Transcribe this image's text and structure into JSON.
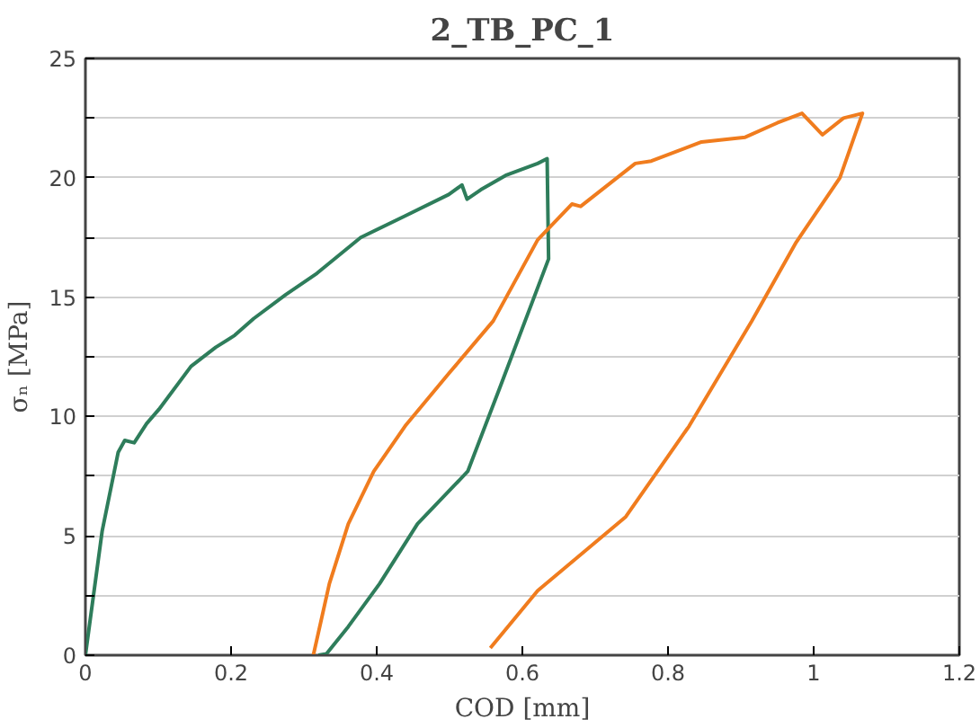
{
  "chart_data": {
    "type": "line",
    "title": "2_TB_PC_1",
    "xlabel": "COD [mm]",
    "ylabel": "σₙ [MPa]",
    "xlim": [
      0,
      1.2
    ],
    "ylim": [
      0,
      25
    ],
    "xticks": [
      0,
      0.2,
      0.4,
      0.6,
      0.8,
      1,
      1.2
    ],
    "yticks": [
      0,
      {
        "value": 2.5,
        "label": null
      },
      5,
      {
        "value": 7.5,
        "label": null
      },
      10,
      {
        "value": 12.5,
        "label": null
      },
      15,
      {
        "value": 17.5,
        "label": null
      },
      20,
      {
        "value": 22.5,
        "label": null
      },
      25
    ],
    "grid": "y",
    "marker": "none",
    "line_style": "solid",
    "series": [
      {
        "color": "#2e7d5b",
        "x": [
          0,
          0.023,
          0.045,
          0.054,
          0.067,
          0.084,
          0.101,
          0.145,
          0.179,
          0.205,
          0.231,
          0.275,
          0.318,
          0.378,
          0.439,
          0.499,
          0.517,
          0.524,
          0.543,
          0.577,
          0.621,
          0.634,
          0.636,
          0.569,
          0.525,
          0.456,
          0.404,
          0.361,
          0.331,
          0.32
        ],
        "values": [
          0,
          5.2,
          8.5,
          9.0,
          8.9,
          9.7,
          10.3,
          12.1,
          12.9,
          13.4,
          14.1,
          15.1,
          16.0,
          17.5,
          18.4,
          19.3,
          19.7,
          19.1,
          19.5,
          20.1,
          20.6,
          20.8,
          16.6,
          11.2,
          7.7,
          5.5,
          3.0,
          1.2,
          0.06,
          0
        ]
      },
      {
        "color": "#f07c1e",
        "x": [
          0.313,
          0.335,
          0.361,
          0.396,
          0.439,
          0.499,
          0.56,
          0.621,
          0.668,
          0.68,
          0.755,
          0.777,
          0.846,
          0.906,
          0.95,
          0.984,
          1.012,
          1.041,
          1.067,
          1.036,
          0.976,
          0.915,
          0.829,
          0.742,
          0.621,
          0.556
        ],
        "values": [
          0,
          3.0,
          5.5,
          7.7,
          9.6,
          11.8,
          14.0,
          17.4,
          18.9,
          18.8,
          20.6,
          20.7,
          21.5,
          21.7,
          22.3,
          22.7,
          21.8,
          22.5,
          22.7,
          20.0,
          17.3,
          14.0,
          9.6,
          5.8,
          2.7,
          0.3
        ]
      }
    ]
  }
}
